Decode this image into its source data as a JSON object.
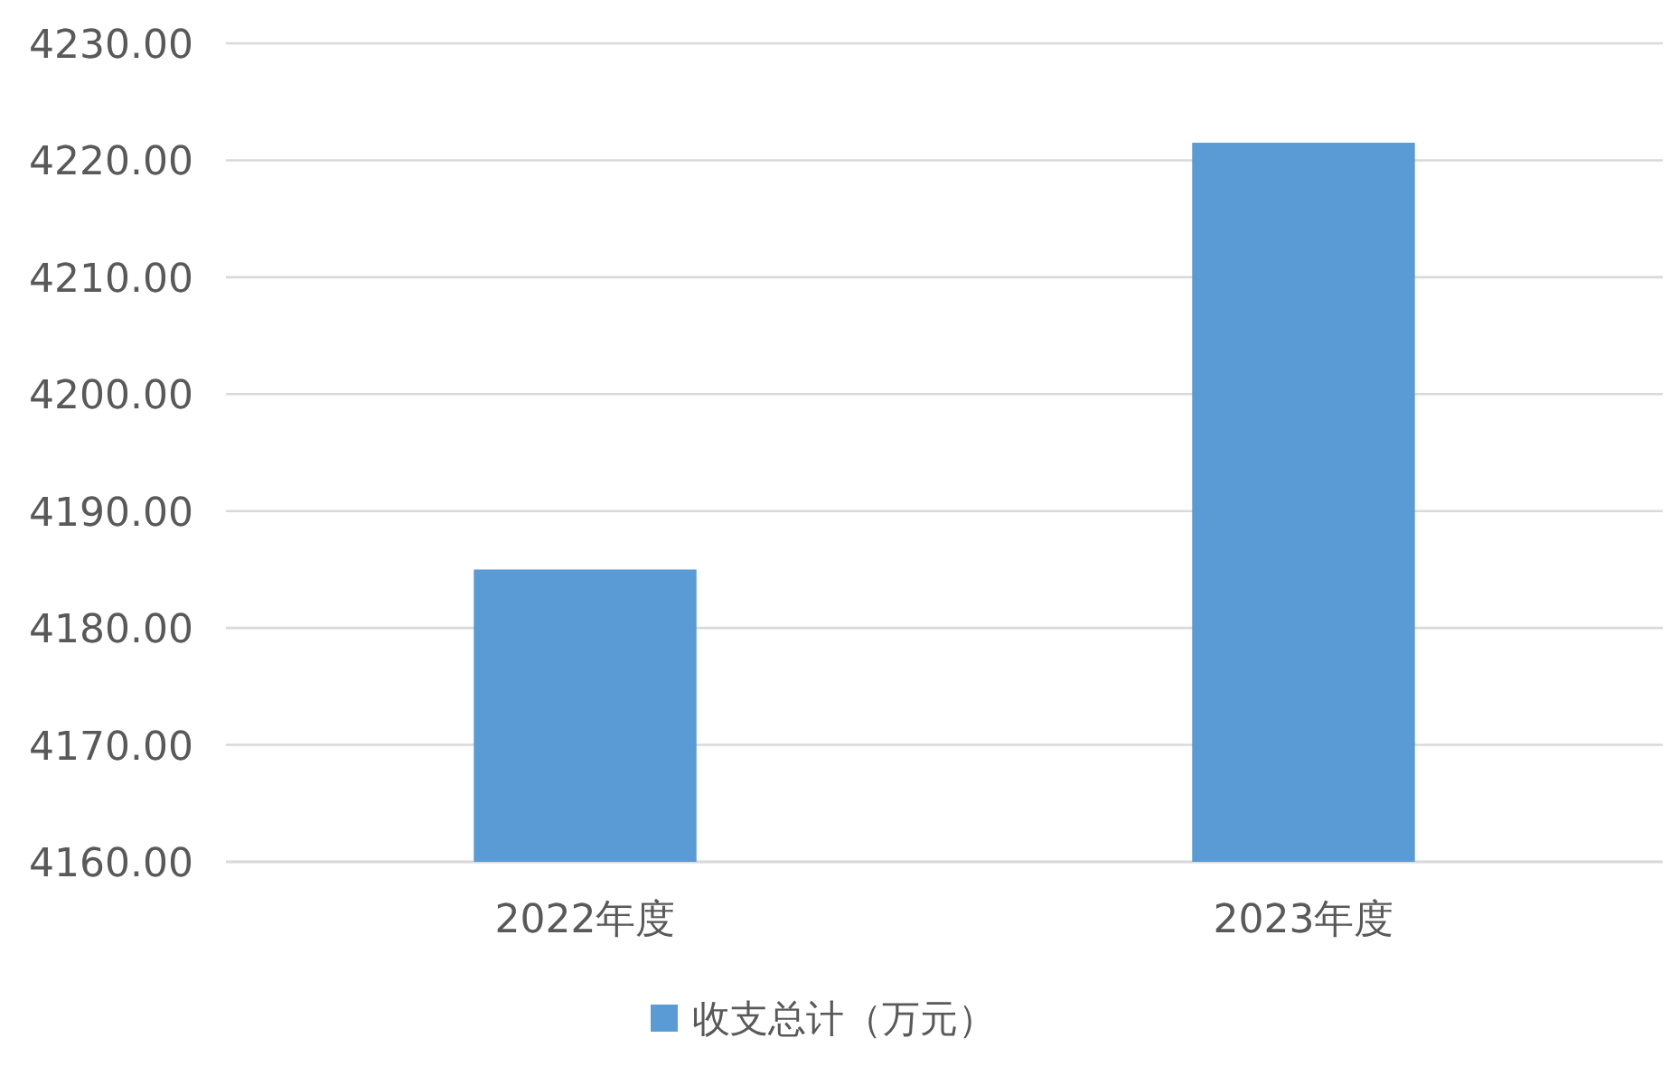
{
  "chart_data": {
    "type": "bar",
    "categories": [
      "2022年度",
      "2023年度"
    ],
    "series": [
      {
        "name": "收支总计（万元）",
        "color": "#5b9bd5",
        "values": [
          4185.0,
          4221.5
        ]
      }
    ],
    "ylim": [
      4160,
      4230
    ],
    "yticks": [
      {
        "value": 4160,
        "label": "4160.00"
      },
      {
        "value": 4170,
        "label": "4170.00"
      },
      {
        "value": 4180,
        "label": "4180.00"
      },
      {
        "value": 4190,
        "label": "4190.00"
      },
      {
        "value": 4200,
        "label": "4200.00"
      },
      {
        "value": 4210,
        "label": "4210.00"
      },
      {
        "value": 4220,
        "label": "4220.00"
      },
      {
        "value": 4230,
        "label": "4230.00"
      }
    ],
    "grid": "y",
    "legend": "bottom"
  }
}
